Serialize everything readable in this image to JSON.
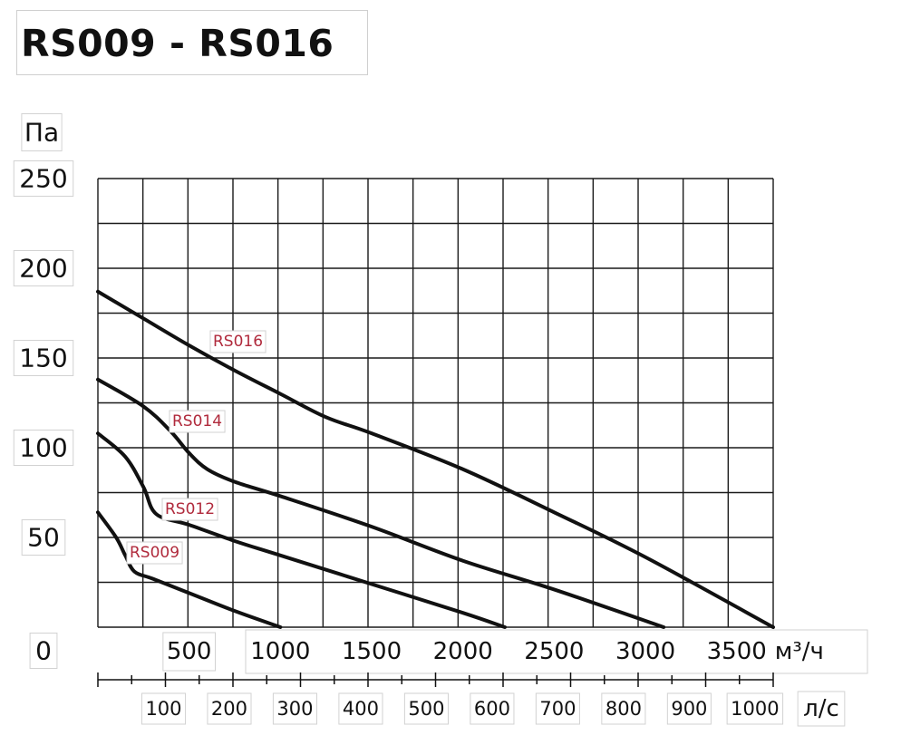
{
  "chart_data": {
    "type": "line",
    "title": "RS009 - RS016",
    "ylabel": "Па",
    "xlabel": "м³/ч",
    "x_unit": "м³/ч",
    "x2label": "л/с",
    "xlim": [
      0,
      3700
    ],
    "ylim": [
      0,
      250
    ],
    "grid": true,
    "y_ticks": [
      "250",
      "200",
      "150",
      "100",
      "50",
      "0"
    ],
    "x_ticks": [
      "500",
      "1000",
      "1500",
      "2000",
      "2500",
      "3000",
      "3500"
    ],
    "x2_ticks": [
      "100",
      "200",
      "300",
      "400",
      "500",
      "600",
      "700",
      "800",
      "900",
      "1000"
    ],
    "series": [
      {
        "name": "RS016",
        "x": [
          0,
          250,
          500,
          750,
          1000,
          1250,
          1500,
          2000,
          2500,
          3000,
          3700
        ],
        "y": [
          187,
          172,
          157,
          143,
          130,
          117,
          108,
          88,
          64,
          39,
          0
        ]
      },
      {
        "name": "RS014",
        "x": [
          0,
          250,
          400,
          500,
          600,
          750,
          1000,
          1500,
          2000,
          2500,
          3100
        ],
        "y": [
          138,
          123,
          109,
          97,
          88,
          81,
          73,
          56,
          37,
          21,
          0
        ]
      },
      {
        "name": "RS012",
        "x": [
          0,
          150,
          250,
          320,
          500,
          750,
          1000,
          1500,
          2000,
          2230
        ],
        "y": [
          108,
          95,
          78,
          63,
          57,
          48,
          40,
          24,
          8,
          0
        ]
      },
      {
        "name": "RS009",
        "x": [
          0,
          100,
          150,
          200,
          300,
          500,
          750,
          1000
        ],
        "y": [
          64,
          50,
          40,
          31,
          27,
          19,
          9,
          0
        ]
      }
    ]
  }
}
